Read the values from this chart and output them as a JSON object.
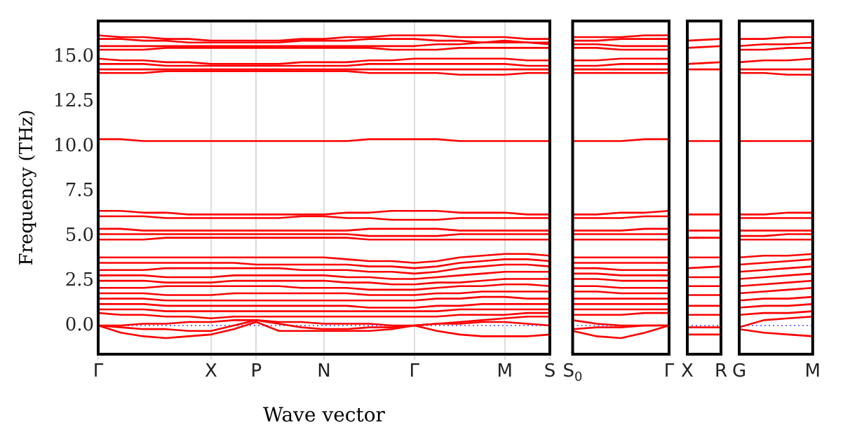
{
  "chart_data": [
    {
      "type": "line",
      "xlabel": "Wave vector",
      "ylabel": "Frequency (THz)",
      "categories": [
        "Γ",
        null,
        null,
        null,
        null,
        "X",
        null,
        "P",
        null,
        null,
        "N",
        null,
        null,
        null,
        "Γ",
        null,
        null,
        null,
        "M",
        null,
        "S"
      ],
      "ylim": [
        -1.6,
        17
      ],
      "yticks": [
        {
          "value": 0,
          "label": "0.0"
        },
        2.5,
        {
          "value": 5,
          "label": "5.0"
        },
        7.5,
        {
          "value": 10,
          "label": "10.0"
        },
        12.5,
        {
          "value": 15,
          "label": "15.0"
        }
      ],
      "grid": "x",
      "legend": false,
      "marker": "none",
      "line_style": "solid",
      "ref_lines": [
        {
          "axis": "y",
          "value": 0,
          "color": "#4444ff",
          "line_style": "dotted"
        }
      ],
      "series": [
        {
          "color": "#ff0000",
          "values": [
            16.2,
            16.1,
            16.1,
            16.0,
            16.0,
            15.9,
            15.9,
            15.9,
            15.9,
            16.0,
            16.0,
            16.1,
            16.1,
            16.2,
            16.2,
            16.2,
            16.1,
            16.1,
            16.1,
            16.0,
            16.0
          ]
        },
        {
          "color": "#ff0000",
          "values": [
            16.0,
            16.0,
            15.9,
            15.9,
            15.8,
            15.8,
            15.8,
            15.8,
            15.8,
            15.9,
            15.9,
            15.9,
            16.0,
            16.0,
            16.0,
            15.9,
            15.9,
            15.8,
            15.8,
            15.8,
            15.8
          ]
        },
        {
          "color": "#ff0000",
          "values": [
            15.6,
            15.6,
            15.6,
            15.6,
            15.6,
            15.6,
            15.6,
            15.6,
            15.6,
            15.6,
            15.6,
            15.6,
            15.6,
            15.6,
            15.6,
            15.7,
            15.7,
            15.8,
            15.9,
            15.8,
            15.7
          ]
        },
        {
          "color": "#ff0000",
          "values": [
            15.4,
            15.4,
            15.4,
            15.5,
            15.5,
            15.5,
            15.5,
            15.5,
            15.5,
            15.5,
            15.5,
            15.5,
            15.5,
            15.4,
            15.4,
            15.4,
            15.5,
            15.5,
            15.5,
            15.5,
            15.5
          ]
        },
        {
          "color": "#ff0000",
          "values": [
            14.9,
            14.8,
            14.8,
            14.7,
            14.7,
            14.6,
            14.6,
            14.6,
            14.6,
            14.7,
            14.7,
            14.7,
            14.8,
            14.8,
            14.9,
            14.9,
            14.9,
            14.9,
            14.9,
            14.8,
            14.8
          ]
        },
        {
          "color": "#ff0000",
          "values": [
            14.6,
            14.6,
            14.6,
            14.5,
            14.5,
            14.5,
            14.5,
            14.5,
            14.5,
            14.5,
            14.5,
            14.5,
            14.6,
            14.6,
            14.6,
            14.6,
            14.6,
            14.6,
            14.6,
            14.5,
            14.5
          ]
        },
        {
          "color": "#ff0000",
          "values": [
            14.3,
            14.3,
            14.3,
            14.3,
            14.3,
            14.3,
            14.3,
            14.3,
            14.3,
            14.3,
            14.3,
            14.3,
            14.3,
            14.3,
            14.3,
            14.3,
            14.3,
            14.3,
            14.3,
            14.3,
            14.3
          ]
        },
        {
          "color": "#ff0000",
          "values": [
            14.1,
            14.1,
            14.1,
            14.2,
            14.2,
            14.2,
            14.2,
            14.2,
            14.2,
            14.2,
            14.2,
            14.2,
            14.1,
            14.1,
            14.1,
            14.1,
            14.0,
            14.0,
            14.0,
            14.1,
            14.1
          ]
        },
        {
          "color": "#ff0000",
          "values": [
            10.4,
            10.4,
            10.3,
            10.3,
            10.3,
            10.3,
            10.3,
            10.3,
            10.3,
            10.3,
            10.3,
            10.3,
            10.4,
            10.4,
            10.4,
            10.4,
            10.3,
            10.3,
            10.3,
            10.3,
            10.3
          ]
        },
        {
          "color": "#ff0000",
          "values": [
            6.4,
            6.4,
            6.3,
            6.3,
            6.2,
            6.2,
            6.2,
            6.2,
            6.2,
            6.2,
            6.2,
            6.3,
            6.3,
            6.4,
            6.4,
            6.4,
            6.3,
            6.3,
            6.3,
            6.2,
            6.2
          ]
        },
        {
          "color": "#ff0000",
          "values": [
            6.1,
            6.1,
            6.1,
            6.0,
            6.0,
            6.0,
            6.0,
            6.0,
            6.0,
            6.1,
            6.1,
            6.0,
            6.0,
            5.9,
            5.9,
            5.9,
            6.0,
            6.0,
            6.0,
            6.0,
            6.0
          ]
        },
        {
          "color": "#ff0000",
          "values": [
            5.4,
            5.4,
            5.3,
            5.3,
            5.3,
            5.3,
            5.3,
            5.3,
            5.3,
            5.3,
            5.3,
            5.3,
            5.4,
            5.4,
            5.4,
            5.4,
            5.3,
            5.3,
            5.3,
            5.3,
            5.3
          ]
        },
        {
          "color": "#ff0000",
          "values": [
            5.1,
            5.1,
            5.1,
            5.1,
            5.1,
            5.1,
            5.1,
            5.1,
            5.1,
            5.1,
            5.1,
            5.1,
            5.0,
            5.0,
            5.0,
            5.0,
            5.1,
            5.1,
            5.1,
            5.1,
            5.1
          ]
        },
        {
          "color": "#ff0000",
          "values": [
            4.8,
            4.8,
            4.8,
            4.9,
            4.9,
            4.9,
            4.9,
            4.9,
            4.9,
            4.9,
            4.9,
            4.9,
            4.8,
            4.8,
            4.8,
            4.8,
            4.8,
            4.8,
            4.8,
            4.8,
            4.8
          ]
        },
        {
          "color": "#ff0000",
          "values": [
            3.8,
            3.8,
            3.8,
            3.8,
            3.8,
            3.8,
            3.8,
            3.8,
            3.8,
            3.8,
            3.8,
            3.7,
            3.6,
            3.6,
            3.5,
            3.6,
            3.8,
            3.9,
            4.0,
            4.0,
            3.9
          ]
        },
        {
          "color": "#ff0000",
          "values": [
            3.5,
            3.5,
            3.5,
            3.5,
            3.5,
            3.5,
            3.5,
            3.4,
            3.4,
            3.4,
            3.4,
            3.4,
            3.3,
            3.3,
            3.2,
            3.3,
            3.5,
            3.6,
            3.7,
            3.7,
            3.6
          ]
        },
        {
          "color": "#ff0000",
          "values": [
            3.1,
            3.1,
            3.1,
            3.2,
            3.2,
            3.2,
            3.2,
            3.2,
            3.2,
            3.1,
            3.1,
            3.1,
            3.0,
            3.0,
            2.9,
            3.0,
            3.2,
            3.3,
            3.4,
            3.4,
            3.3
          ]
        },
        {
          "color": "#ff0000",
          "values": [
            2.8,
            2.8,
            2.8,
            2.7,
            2.7,
            2.7,
            2.8,
            2.8,
            2.8,
            2.8,
            2.8,
            2.7,
            2.7,
            2.6,
            2.6,
            2.7,
            2.8,
            2.9,
            3.0,
            3.0,
            3.0
          ]
        },
        {
          "color": "#ff0000",
          "values": [
            2.5,
            2.5,
            2.5,
            2.4,
            2.4,
            2.4,
            2.5,
            2.5,
            2.5,
            2.5,
            2.5,
            2.4,
            2.4,
            2.3,
            2.3,
            2.4,
            2.4,
            2.5,
            2.6,
            2.6,
            2.6
          ]
        },
        {
          "color": "#ff0000",
          "values": [
            2.1,
            2.1,
            2.1,
            2.2,
            2.2,
            2.2,
            2.2,
            2.2,
            2.2,
            2.1,
            2.1,
            2.1,
            2.0,
            2.0,
            2.0,
            2.1,
            2.2,
            2.2,
            2.3,
            2.3,
            2.2
          ]
        },
        {
          "color": "#ff0000",
          "values": [
            1.8,
            1.8,
            1.8,
            1.7,
            1.7,
            1.7,
            1.8,
            1.8,
            1.8,
            1.8,
            1.8,
            1.8,
            1.7,
            1.7,
            1.7,
            1.8,
            1.8,
            1.9,
            1.9,
            1.9,
            1.9
          ]
        },
        {
          "color": "#ff0000",
          "values": [
            1.5,
            1.5,
            1.5,
            1.4,
            1.4,
            1.4,
            1.4,
            1.4,
            1.4,
            1.4,
            1.4,
            1.4,
            1.4,
            1.4,
            1.4,
            1.5,
            1.5,
            1.6,
            1.6,
            1.5,
            1.5
          ]
        },
        {
          "color": "#ff0000",
          "values": [
            1.2,
            1.2,
            1.2,
            1.1,
            1.1,
            1.1,
            1.1,
            1.1,
            1.1,
            1.1,
            1.1,
            1.1,
            1.0,
            1.0,
            1.0,
            1.1,
            1.1,
            1.2,
            1.2,
            1.2,
            1.2
          ]
        },
        {
          "color": "#ff0000",
          "values": [
            0.9,
            0.9,
            0.9,
            0.8,
            0.8,
            0.8,
            0.8,
            0.8,
            0.8,
            0.8,
            0.8,
            0.8,
            0.8,
            0.8,
            0.8,
            0.8,
            0.9,
            0.9,
            0.9,
            0.9,
            0.9
          ]
        },
        {
          "color": "#ff0000",
          "values": [
            0.7,
            0.6,
            0.6,
            0.5,
            0.5,
            0.4,
            0.5,
            0.5,
            0.5,
            0.5,
            0.5,
            0.5,
            0.5,
            0.5,
            0.5,
            0.5,
            0.6,
            0.6,
            0.6,
            0.7,
            0.7
          ]
        },
        {
          "color": "#ff0000",
          "values": [
            0.0,
            0.0,
            0.1,
            0.1,
            0.2,
            0.2,
            0.3,
            0.3,
            0.2,
            0.2,
            0.1,
            0.1,
            0.1,
            0.0,
            0.0,
            0.1,
            0.2,
            0.3,
            0.4,
            0.5,
            0.5
          ]
        },
        {
          "color": "#ff0000",
          "values": [
            0.0,
            -0.1,
            -0.2,
            -0.2,
            -0.3,
            -0.3,
            0.0,
            0.3,
            0.1,
            -0.1,
            -0.2,
            -0.2,
            -0.1,
            -0.1,
            0.0,
            0.1,
            0.1,
            0.2,
            0.2,
            0.1,
            0.0
          ]
        },
        {
          "color": "#ff0000",
          "values": [
            0.0,
            -0.4,
            -0.6,
            -0.7,
            -0.6,
            -0.5,
            -0.2,
            0.2,
            -0.3,
            -0.3,
            -0.3,
            -0.3,
            -0.3,
            -0.2,
            0.0,
            -0.3,
            -0.5,
            -0.6,
            -0.6,
            -0.6,
            -0.5
          ]
        }
      ]
    },
    {
      "type": "line",
      "categories": [
        "S$_{0}$",
        null,
        null,
        null,
        "Γ"
      ],
      "ylim": [
        -1.6,
        17
      ],
      "yticks": [
        0,
        2.5,
        5,
        7.5,
        10,
        12.5,
        15
      ],
      "tick_labels": "x",
      "legend": false,
      "marker": "none",
      "line_style": "solid",
      "ref_lines": [
        {
          "axis": "y",
          "value": 0,
          "color": "#4444ff",
          "line_style": "dotted"
        }
      ],
      "series": [
        {
          "color": "#ff0000",
          "values": [
            16.1,
            16.1,
            16.1,
            16.2,
            16.2
          ]
        },
        {
          "color": "#ff0000",
          "values": [
            15.9,
            15.9,
            16.0,
            16.0,
            16.0
          ]
        },
        {
          "color": "#ff0000",
          "values": [
            15.7,
            15.7,
            15.6,
            15.6,
            15.6
          ]
        },
        {
          "color": "#ff0000",
          "values": [
            15.5,
            15.5,
            15.4,
            15.4,
            15.4
          ]
        },
        {
          "color": "#ff0000",
          "values": [
            14.8,
            14.8,
            14.9,
            14.9,
            14.9
          ]
        },
        {
          "color": "#ff0000",
          "values": [
            14.5,
            14.5,
            14.6,
            14.6,
            14.6
          ]
        },
        {
          "color": "#ff0000",
          "values": [
            14.3,
            14.3,
            14.3,
            14.3,
            14.3
          ]
        },
        {
          "color": "#ff0000",
          "values": [
            14.1,
            14.1,
            14.1,
            14.1,
            14.1
          ]
        },
        {
          "color": "#ff0000",
          "values": [
            10.3,
            10.3,
            10.3,
            10.4,
            10.4
          ]
        },
        {
          "color": "#ff0000",
          "values": [
            6.2,
            6.2,
            6.3,
            6.3,
            6.4
          ]
        },
        {
          "color": "#ff0000",
          "values": [
            6.0,
            6.0,
            6.0,
            6.1,
            6.1
          ]
        },
        {
          "color": "#ff0000",
          "values": [
            5.3,
            5.3,
            5.3,
            5.4,
            5.4
          ]
        },
        {
          "color": "#ff0000",
          "values": [
            5.1,
            5.1,
            5.1,
            5.1,
            5.1
          ]
        },
        {
          "color": "#ff0000",
          "values": [
            4.8,
            4.8,
            4.8,
            4.8,
            4.8
          ]
        },
        {
          "color": "#ff0000",
          "values": [
            3.8,
            3.8,
            3.8,
            3.8,
            3.8
          ]
        },
        {
          "color": "#ff0000",
          "values": [
            3.5,
            3.5,
            3.5,
            3.5,
            3.5
          ]
        },
        {
          "color": "#ff0000",
          "values": [
            3.2,
            3.2,
            3.1,
            3.1,
            3.1
          ]
        },
        {
          "color": "#ff0000",
          "values": [
            2.9,
            2.9,
            2.8,
            2.8,
            2.8
          ]
        },
        {
          "color": "#ff0000",
          "values": [
            2.6,
            2.6,
            2.5,
            2.5,
            2.5
          ]
        },
        {
          "color": "#ff0000",
          "values": [
            2.2,
            2.2,
            2.1,
            2.1,
            2.1
          ]
        },
        {
          "color": "#ff0000",
          "values": [
            1.9,
            1.9,
            1.8,
            1.8,
            1.8
          ]
        },
        {
          "color": "#ff0000",
          "values": [
            1.5,
            1.5,
            1.5,
            1.5,
            1.5
          ]
        },
        {
          "color": "#ff0000",
          "values": [
            1.2,
            1.2,
            1.2,
            1.2,
            1.2
          ]
        },
        {
          "color": "#ff0000",
          "values": [
            0.9,
            0.9,
            0.9,
            0.9,
            0.9
          ]
        },
        {
          "color": "#ff0000",
          "values": [
            0.6,
            0.6,
            0.6,
            0.7,
            0.7
          ]
        },
        {
          "color": "#ff0000",
          "values": [
            0.3,
            0.1,
            0.0,
            0.0,
            0.0
          ]
        },
        {
          "color": "#ff0000",
          "values": [
            -0.2,
            -0.1,
            -0.1,
            0.0,
            0.0
          ]
        },
        {
          "color": "#ff0000",
          "values": [
            -0.3,
            -0.6,
            -0.7,
            -0.4,
            0.0
          ]
        }
      ]
    },
    {
      "type": "line",
      "categories": [
        "X",
        "R"
      ],
      "ylim": [
        -1.6,
        17
      ],
      "yticks": [
        0,
        2.5,
        5,
        7.5,
        10,
        12.5,
        15
      ],
      "tick_labels": "x",
      "legend": false,
      "marker": "none",
      "line_style": "solid",
      "ref_lines": [
        {
          "axis": "y",
          "value": 0,
          "color": "#4444ff",
          "line_style": "dotted"
        }
      ],
      "series": [
        {
          "color": "#ff0000",
          "values": [
            15.9,
            16.0
          ]
        },
        {
          "color": "#ff0000",
          "values": [
            15.5,
            15.6
          ]
        },
        {
          "color": "#ff0000",
          "values": [
            14.6,
            14.7
          ]
        },
        {
          "color": "#ff0000",
          "values": [
            14.3,
            14.3
          ]
        },
        {
          "color": "#ff0000",
          "values": [
            10.3,
            10.3
          ]
        },
        {
          "color": "#ff0000",
          "values": [
            6.2,
            6.2
          ]
        },
        {
          "color": "#ff0000",
          "values": [
            5.3,
            5.3
          ]
        },
        {
          "color": "#ff0000",
          "values": [
            4.9,
            4.9
          ]
        },
        {
          "color": "#ff0000",
          "values": [
            3.8,
            3.8
          ]
        },
        {
          "color": "#ff0000",
          "values": [
            3.2,
            3.3
          ]
        },
        {
          "color": "#ff0000",
          "values": [
            2.7,
            2.7
          ]
        },
        {
          "color": "#ff0000",
          "values": [
            2.2,
            2.2
          ]
        },
        {
          "color": "#ff0000",
          "values": [
            1.7,
            1.7
          ]
        },
        {
          "color": "#ff0000",
          "values": [
            1.1,
            1.1
          ]
        },
        {
          "color": "#ff0000",
          "values": [
            0.6,
            0.6
          ]
        },
        {
          "color": "#ff0000",
          "values": [
            -0.1,
            -0.1
          ]
        },
        {
          "color": "#ff0000",
          "values": [
            -0.5,
            -0.5
          ]
        }
      ]
    },
    {
      "type": "line",
      "categories": [
        "G",
        null,
        null,
        "M"
      ],
      "ylim": [
        -1.6,
        17
      ],
      "yticks": [
        0,
        2.5,
        5,
        7.5,
        10,
        12.5,
        15
      ],
      "tick_labels": "x",
      "legend": false,
      "marker": "none",
      "line_style": "solid",
      "ref_lines": [
        {
          "axis": "y",
          "value": 0,
          "color": "#4444ff",
          "line_style": "dotted"
        }
      ],
      "series": [
        {
          "color": "#ff0000",
          "values": [
            16.0,
            16.0,
            16.1,
            16.1
          ]
        },
        {
          "color": "#ff0000",
          "values": [
            15.6,
            15.7,
            15.7,
            15.8
          ]
        },
        {
          "color": "#ff0000",
          "values": [
            15.4,
            15.4,
            15.5,
            15.5
          ]
        },
        {
          "color": "#ff0000",
          "values": [
            14.7,
            14.8,
            14.8,
            14.9
          ]
        },
        {
          "color": "#ff0000",
          "values": [
            14.3,
            14.3,
            14.3,
            14.3
          ]
        },
        {
          "color": "#ff0000",
          "values": [
            14.1,
            14.1,
            14.0,
            14.0
          ]
        },
        {
          "color": "#ff0000",
          "values": [
            10.3,
            10.3,
            10.3,
            10.3
          ]
        },
        {
          "color": "#ff0000",
          "values": [
            6.2,
            6.2,
            6.3,
            6.3
          ]
        },
        {
          "color": "#ff0000",
          "values": [
            6.0,
            6.0,
            6.0,
            6.0
          ]
        },
        {
          "color": "#ff0000",
          "values": [
            5.3,
            5.3,
            5.3,
            5.3
          ]
        },
        {
          "color": "#ff0000",
          "values": [
            5.0,
            5.0,
            5.1,
            5.1
          ]
        },
        {
          "color": "#ff0000",
          "values": [
            4.8,
            4.8,
            4.8,
            4.8
          ]
        },
        {
          "color": "#ff0000",
          "values": [
            3.8,
            3.9,
            3.9,
            4.0
          ]
        },
        {
          "color": "#ff0000",
          "values": [
            3.4,
            3.5,
            3.6,
            3.7
          ]
        },
        {
          "color": "#ff0000",
          "values": [
            3.0,
            3.1,
            3.2,
            3.3
          ]
        },
        {
          "color": "#ff0000",
          "values": [
            2.6,
            2.7,
            2.8,
            2.9
          ]
        },
        {
          "color": "#ff0000",
          "values": [
            2.2,
            2.3,
            2.4,
            2.5
          ]
        },
        {
          "color": "#ff0000",
          "values": [
            1.8,
            1.9,
            2.0,
            2.1
          ]
        },
        {
          "color": "#ff0000",
          "values": [
            1.4,
            1.5,
            1.5,
            1.6
          ]
        },
        {
          "color": "#ff0000",
          "values": [
            1.0,
            1.1,
            1.1,
            1.2
          ]
        },
        {
          "color": "#ff0000",
          "values": [
            0.6,
            0.7,
            0.7,
            0.8
          ]
        },
        {
          "color": "#ff0000",
          "values": [
            -0.1,
            0.3,
            0.4,
            0.5
          ]
        },
        {
          "color": "#ff0000",
          "values": [
            -0.2,
            -0.4,
            -0.5,
            -0.6
          ]
        }
      ]
    }
  ]
}
